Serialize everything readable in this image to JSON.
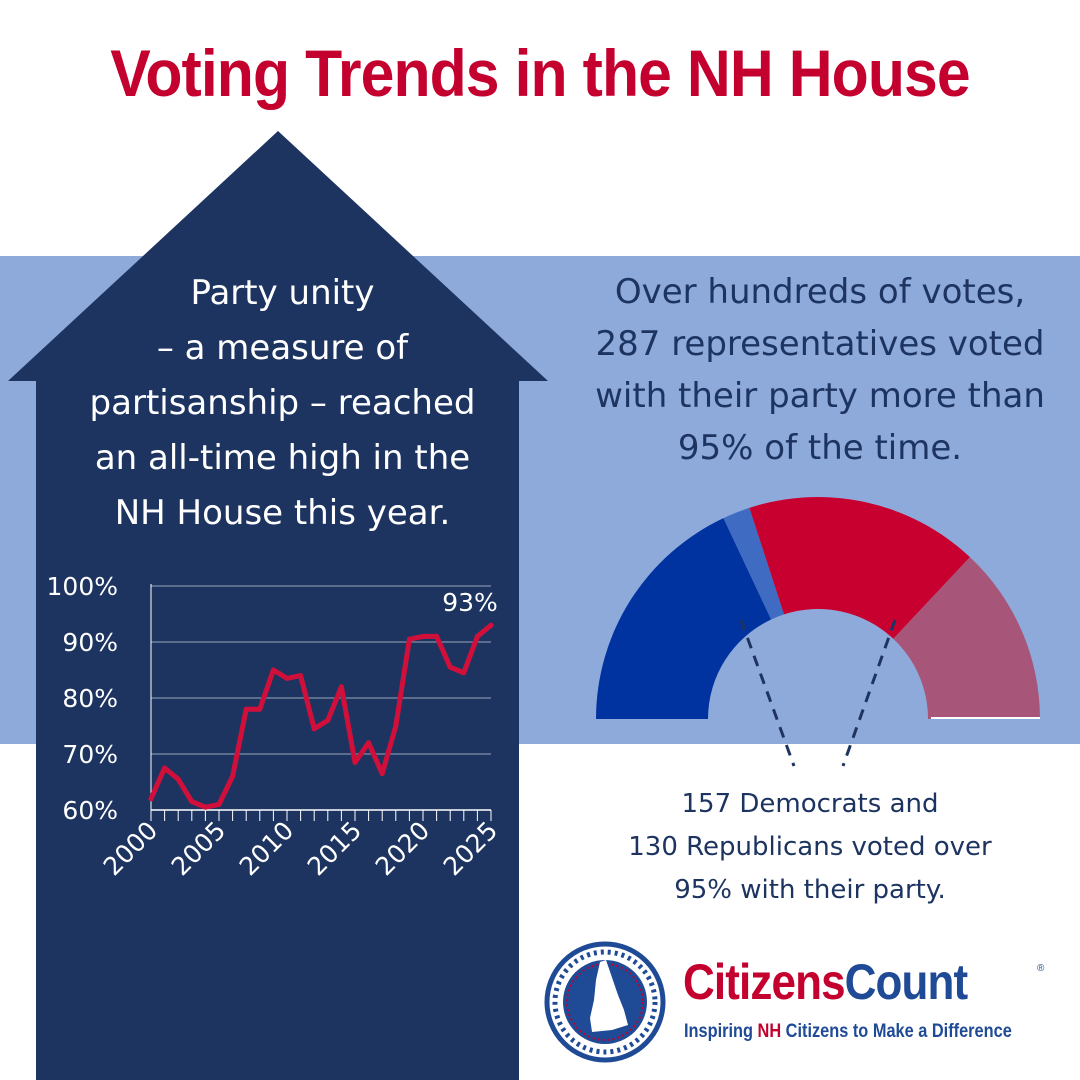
{
  "title": "Voting Trends in the NH House",
  "left_text": "Party unity\n– a measure of\npartisanship – reached\nan all-time high in the\nNH House this year.",
  "right_text": "Over hundreds of votes,\n287 representatives voted\nwith their party more than\n95% of the time.",
  "bottom_text": "157 Democrats and\n130 Republicans voted over\n95% with their party.",
  "logo": {
    "name_part1": "Citizens",
    "name_part2": "Count",
    "registered": "®",
    "tagline_before": "Inspiring ",
    "tagline_nh": "NH",
    "tagline_after": " Citizens to Make a Difference"
  },
  "colors": {
    "title_red": "#c4002f",
    "navy": "#1d3461",
    "band_blue": "#8eaadb",
    "line_red": "#d0103a",
    "dem_blue": "#0033a0",
    "dem_light": "#3f6cc2",
    "rep_red": "#c8002f",
    "rep_mauve": "#a8557a"
  },
  "chart_data": [
    {
      "type": "line",
      "title": "",
      "xlabel": "",
      "ylabel": "",
      "x_tick_labels": [
        "2000",
        "2005",
        "2010",
        "2015",
        "2020",
        "2025"
      ],
      "y_tick_labels": [
        "60%",
        "70%",
        "80%",
        "90%",
        "100%"
      ],
      "xlim": [
        2000,
        2025
      ],
      "ylim": [
        60,
        100
      ],
      "grid": true,
      "annotation": "93%",
      "series": [
        {
          "x": [
            2000,
            2001,
            2002,
            2003,
            2004,
            2005,
            2006,
            2007,
            2008,
            2009,
            2010,
            2011,
            2012,
            2013,
            2014,
            2015,
            2016,
            2017,
            2018,
            2019,
            2020,
            2021,
            2022,
            2023,
            2024,
            2025
          ],
          "values": [
            62,
            67.5,
            65.5,
            61.5,
            60.5,
            61,
            66,
            78,
            78,
            85,
            83.5,
            84,
            74.5,
            76,
            82,
            68.5,
            72,
            66.5,
            75,
            90.5,
            91,
            91,
            85.5,
            84.5,
            91,
            93
          ]
        }
      ]
    },
    {
      "type": "pie",
      "title": "",
      "style": "semicircle",
      "segments": [
        {
          "value": 0.36,
          "color": "#0033a0"
        },
        {
          "value": 0.04,
          "color": "#3f6cc2"
        },
        {
          "value": 0.34,
          "color": "#c8002f"
        },
        {
          "value": 0.26,
          "color": "#a8557a"
        }
      ]
    }
  ]
}
